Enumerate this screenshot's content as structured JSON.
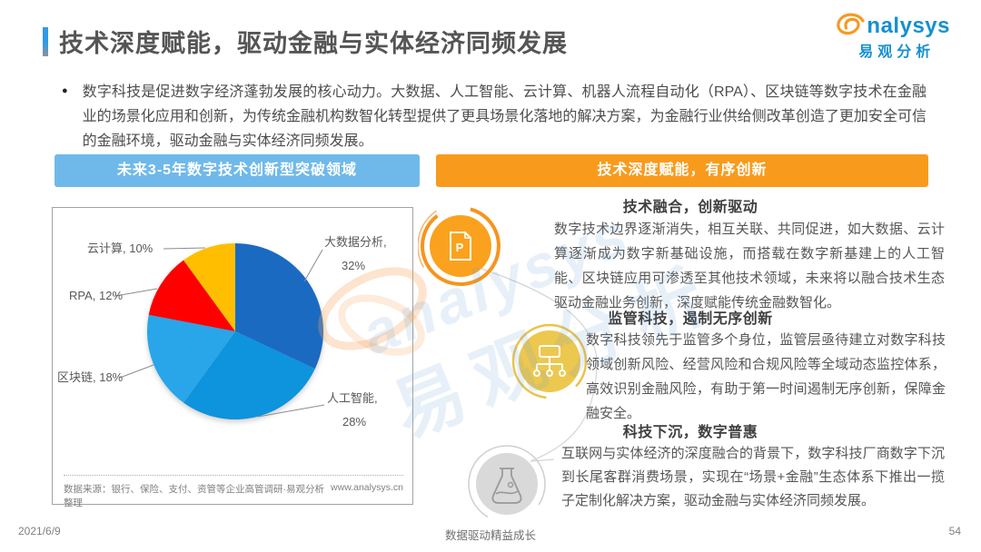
{
  "header": {
    "title": "技术深度赋能，驱动金融与实体经济同频发展",
    "logo": {
      "wordmark": "analysys",
      "wordmark_cn": "易观分析"
    }
  },
  "intro": {
    "bullet": "●",
    "text": "数字科技是促进数字经济蓬勃发展的核心动力。大数据、人工智能、云计算、机器人流程自动化（RPA）、区块链等数字技术在金融业的场景化应用和创新，为传统金融机构数智化转型提供了更具场景化落地的解决方案，为金融行业供给侧改革创造了更加安全可信的金融环境，驱动金融与实体经济同频发展。"
  },
  "left_panel": {
    "header": "未来3-5年数字技术创新型突破领域",
    "source": "数据来源：银行、保险、支付、资管等企业高管调研·易观分析整理",
    "website": "www.analysys.cn"
  },
  "chart_data": {
    "type": "pie",
    "title": "未来3-5年数字技术创新型突破领域",
    "labels": [
      "大数据分析",
      "人工智能",
      "区块链",
      "RPA",
      "云计算"
    ],
    "values": [
      32,
      28,
      18,
      12,
      10
    ],
    "unit": "%",
    "colors": [
      "#1b6ac2",
      "#0e93dd",
      "#29a5e9",
      "#fe0000",
      "#ffbf00"
    ],
    "start_angle_deg": 0,
    "direction": "clockwise",
    "legend": "none",
    "label_style": "callout"
  },
  "right_panel": {
    "header": "技术深度赋能，有序创新",
    "sections": [
      {
        "icon": "document-p",
        "title": "技术融合，创新驱动",
        "body": "数字技术边界逐渐消失，相互关联、共同促进，如大数据、云计算逐渐成为数字新基础设施，而搭载在数字新基建上的人工智能、区块链应用可渗透至其他技术领域，未来将以融合技术生态驱动金融业务创新，深度赋能传统金融数智化。"
      },
      {
        "icon": "org-chart",
        "title": "监管科技，遏制无序创新",
        "body": "数字科技领先于监管多个身位，监管层亟待建立对数字科技领域创新风险、经营风险和合规风险等全域动态监控体系，高效识别金融风险，有助于第一时间遏制无序创新，保障金融安全。"
      },
      {
        "icon": "flask",
        "title": "科技下沉，数字普惠",
        "body": "互联网与实体经济的深度融合的背景下，数字科技厂商数字下沉到长尾客群消费场景，实现在“场景+金融”生态体系下推出一揽子定制化解决方案，驱动金融与实体经济同频发展。"
      }
    ]
  },
  "footer": {
    "date": "2021/6/9",
    "motto": "数据驱动精益成长",
    "page": "54"
  },
  "colors": {
    "bar_blue": "#6fb9ea",
    "bar_orange": "#f89b1d",
    "title_accent": "#2e9be6",
    "logo_blue": "#1590d0",
    "logo_orange": "#f59a23",
    "icon1_fill": "#faa21e",
    "icon2_fill": "#edc84f",
    "icon3_fill": "#d9d9d9"
  }
}
